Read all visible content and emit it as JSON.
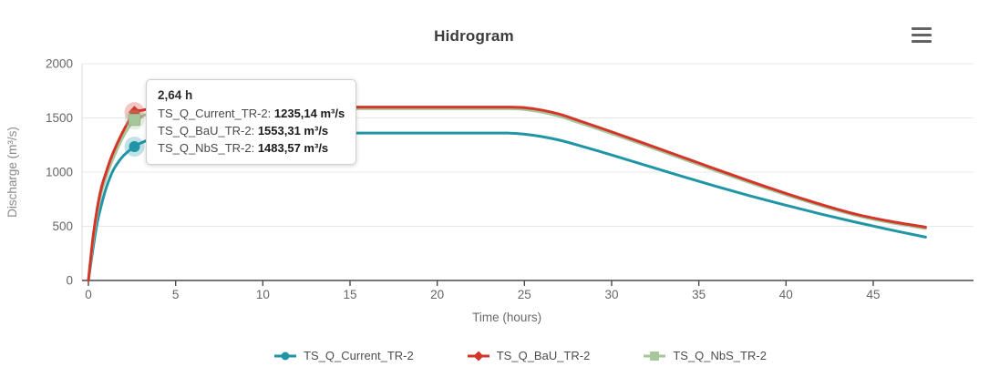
{
  "title": "Hidrogram",
  "menu": {
    "icon": "hamburger-icon"
  },
  "tooltip": {
    "title": "2,64 h",
    "rows": [
      {
        "label": "TS_Q_Current_TR-2:",
        "value": "1235,14 m³/s"
      },
      {
        "label": "TS_Q_BaU_TR-2:",
        "value": "1553,31 m³/s"
      },
      {
        "label": "TS_Q_NbS_TR-2:",
        "value": "1483,57 m³/s"
      }
    ]
  },
  "chart_data": {
    "type": "line",
    "title": "Hidrogram",
    "xlabel": "Time (hours)",
    "ylabel": "Discharge (m³/s)",
    "xlim": [
      0,
      48
    ],
    "ylim": [
      0,
      2000
    ],
    "x_ticks": [
      0,
      5,
      10,
      15,
      20,
      25,
      30,
      35,
      40,
      45
    ],
    "y_ticks": [
      0,
      500,
      1000,
      1500,
      2000
    ],
    "grid": "horizontal",
    "legend_position": "bottom",
    "colors": {
      "grid": "#e8e8e8",
      "axis": "#4a4a4a",
      "tick_text": "#666666"
    },
    "highlight_x": 2.64,
    "series": [
      {
        "name": "TS_Q_Current_TR-2",
        "color": "#1f95a5",
        "marker": "circle",
        "highlight": {
          "x": 2.64,
          "y": 1235.14
        },
        "points": [
          [
            0,
            0
          ],
          [
            0.25,
            280
          ],
          [
            0.5,
            530
          ],
          [
            0.75,
            700
          ],
          [
            1,
            845
          ],
          [
            1.25,
            955
          ],
          [
            1.5,
            1040
          ],
          [
            2,
            1150
          ],
          [
            2.64,
            1235.14
          ],
          [
            3,
            1268
          ],
          [
            3.5,
            1300
          ],
          [
            4,
            1322
          ],
          [
            5,
            1346
          ],
          [
            6,
            1355
          ],
          [
            7,
            1358
          ],
          [
            8,
            1360
          ],
          [
            10,
            1360
          ],
          [
            14,
            1360
          ],
          [
            18,
            1360
          ],
          [
            22,
            1360
          ],
          [
            24,
            1360
          ],
          [
            25,
            1350
          ],
          [
            26,
            1328
          ],
          [
            27,
            1295
          ],
          [
            28,
            1252
          ],
          [
            30,
            1158
          ],
          [
            32,
            1060
          ],
          [
            34,
            963
          ],
          [
            36,
            868
          ],
          [
            38,
            778
          ],
          [
            40,
            694
          ],
          [
            42,
            613
          ],
          [
            44,
            538
          ],
          [
            46,
            467
          ],
          [
            48,
            400
          ]
        ]
      },
      {
        "name": "TS_Q_BaU_TR-2",
        "color": "#d43529",
        "marker": "diamond",
        "highlight": {
          "x": 2.64,
          "y": 1553.31
        },
        "points": [
          [
            0,
            0
          ],
          [
            0.25,
            380
          ],
          [
            0.5,
            660
          ],
          [
            0.75,
            860
          ],
          [
            1,
            990
          ],
          [
            1.25,
            1110
          ],
          [
            1.5,
            1210
          ],
          [
            2,
            1380
          ],
          [
            2.64,
            1553.31
          ],
          [
            3,
            1568
          ],
          [
            3.5,
            1584
          ],
          [
            4,
            1592
          ],
          [
            5,
            1598
          ],
          [
            6,
            1600
          ],
          [
            8,
            1600
          ],
          [
            10,
            1600
          ],
          [
            14,
            1600
          ],
          [
            18,
            1600
          ],
          [
            22,
            1600
          ],
          [
            24,
            1600
          ],
          [
            25,
            1595
          ],
          [
            26,
            1572
          ],
          [
            27,
            1535
          ],
          [
            28,
            1482
          ],
          [
            30,
            1372
          ],
          [
            32,
            1258
          ],
          [
            34,
            1142
          ],
          [
            36,
            1026
          ],
          [
            38,
            912
          ],
          [
            40,
            803
          ],
          [
            42,
            702
          ],
          [
            44,
            612
          ],
          [
            46,
            545
          ],
          [
            48,
            492
          ]
        ]
      },
      {
        "name": "TS_Q_NbS_TR-2",
        "color": "#a6c69c",
        "marker": "square",
        "highlight": {
          "x": 2.64,
          "y": 1483.57
        },
        "points": [
          [
            0,
            0
          ],
          [
            0.25,
            340
          ],
          [
            0.5,
            620
          ],
          [
            0.75,
            815
          ],
          [
            1,
            945
          ],
          [
            1.25,
            1060
          ],
          [
            1.5,
            1155
          ],
          [
            2,
            1330
          ],
          [
            2.64,
            1483.57
          ],
          [
            3,
            1510
          ],
          [
            3.5,
            1543
          ],
          [
            4,
            1560
          ],
          [
            5,
            1576
          ],
          [
            6,
            1582
          ],
          [
            8,
            1585
          ],
          [
            10,
            1585
          ],
          [
            14,
            1585
          ],
          [
            18,
            1585
          ],
          [
            22,
            1585
          ],
          [
            24,
            1585
          ],
          [
            25,
            1578
          ],
          [
            26,
            1553
          ],
          [
            27,
            1515
          ],
          [
            28,
            1463
          ],
          [
            30,
            1355
          ],
          [
            32,
            1242
          ],
          [
            34,
            1126
          ],
          [
            36,
            1011
          ],
          [
            38,
            898
          ],
          [
            40,
            790
          ],
          [
            42,
            690
          ],
          [
            44,
            601
          ],
          [
            46,
            533
          ],
          [
            48,
            480
          ]
        ]
      }
    ]
  }
}
